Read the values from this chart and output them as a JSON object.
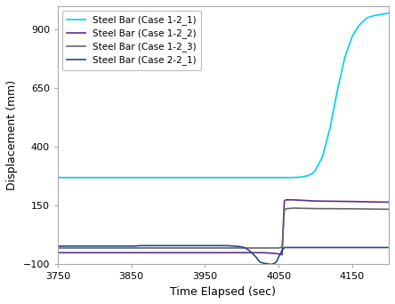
{
  "xlabel": "Time Elapsed (sec)",
  "ylabel": "Displacement (mm)",
  "xlim": [
    3750,
    4200
  ],
  "ylim": [
    -100,
    1000
  ],
  "yticks": [
    -100.0,
    150.0,
    400.0,
    650.0,
    900.0
  ],
  "xticks": [
    3750,
    3850,
    3950,
    4050,
    4150
  ],
  "series": [
    {
      "label": "Steel Bar (Case 1-2_1)",
      "color": "#00CFEF",
      "linewidth": 1.2,
      "x": [
        3750,
        3800,
        3850,
        3900,
        3950,
        4000,
        4020,
        4040,
        4060,
        4070,
        4075,
        4080,
        4085,
        4090,
        4095,
        4100,
        4110,
        4120,
        4130,
        4140,
        4150,
        4160,
        4170,
        4180,
        4190,
        4200
      ],
      "y": [
        270,
        270,
        270,
        270,
        270,
        270,
        270,
        270,
        270,
        270,
        271,
        272,
        275,
        278,
        285,
        300,
        360,
        480,
        640,
        780,
        870,
        920,
        950,
        960,
        965,
        970
      ]
    },
    {
      "label": "Steel Bar (Case 1-2_2)",
      "color": "#5B2C8D",
      "linewidth": 1.2,
      "x": [
        3750,
        3900,
        3990,
        4000,
        4010,
        4020,
        4030,
        4040,
        4050,
        4053,
        4055,
        4057,
        4058,
        4060,
        4070,
        4100,
        4150,
        4200
      ],
      "y": [
        -50,
        -50,
        -50,
        -50,
        -50,
        -50,
        -50,
        -52,
        -55,
        -58,
        -58,
        100,
        170,
        175,
        175,
        170,
        168,
        165
      ]
    },
    {
      "label": "Steel Bar (Case 1-2_3)",
      "color": "#666666",
      "linewidth": 1.2,
      "x": [
        3750,
        3900,
        3990,
        4000,
        4010,
        4020,
        4030,
        4040,
        4050,
        4053,
        4055,
        4057,
        4058,
        4060,
        4070,
        4100,
        4150,
        4200
      ],
      "y": [
        -30,
        -30,
        -30,
        -30,
        -30,
        -30,
        -30,
        -30,
        -30,
        -28,
        -25,
        80,
        130,
        137,
        140,
        138,
        137,
        135
      ]
    },
    {
      "label": "Steel Bar (Case 2-2_1)",
      "color": "#1B4F8A",
      "linewidth": 1.2,
      "x": [
        3750,
        3850,
        3855,
        3860,
        3960,
        3965,
        3980,
        3990,
        4000,
        4005,
        4010,
        4015,
        4020,
        4022,
        4025,
        4030,
        4035,
        4040,
        4045,
        4048,
        4050,
        4055,
        4058,
        4060,
        4100,
        4150,
        4200
      ],
      "y": [
        -22,
        -22,
        -22,
        -20,
        -20,
        -20,
        -20,
        -22,
        -25,
        -30,
        -40,
        -55,
        -70,
        -80,
        -90,
        -95,
        -97,
        -100,
        -95,
        -85,
        -70,
        -40,
        -28,
        -28,
        -28,
        -28,
        -28
      ]
    }
  ]
}
